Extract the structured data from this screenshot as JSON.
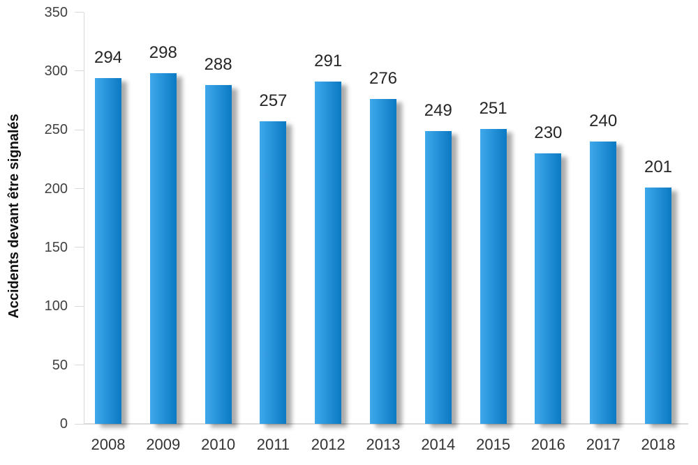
{
  "chart_data": {
    "type": "bar",
    "title": "",
    "categories": [
      "2008",
      "2009",
      "2010",
      "2011",
      "2012",
      "2013",
      "2014",
      "2015",
      "2016",
      "2017",
      "2018"
    ],
    "values": [
      294,
      298,
      288,
      257,
      291,
      276,
      249,
      251,
      230,
      240,
      201
    ],
    "xlabel": "",
    "ylabel": "Accidents devant être signalés",
    "ylim": [
      0,
      350
    ],
    "ytick_step": 50,
    "grid": false,
    "legend": null,
    "value_labels_shown": true
  },
  "style": {
    "bar_gradient_left": "#3EA8EB",
    "bar_gradient_right": "#0B79C3",
    "axis_line_color": "#D9D9D9",
    "value_label_color": "#262626",
    "ytick_label_color": "#404040",
    "x_label_color": "#333333",
    "y_title_color": "#111111"
  }
}
